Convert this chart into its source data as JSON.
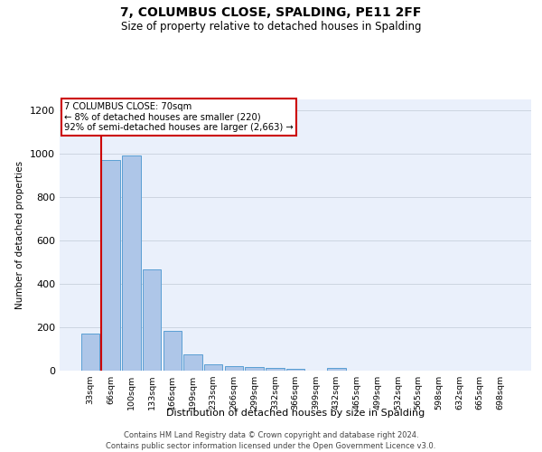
{
  "title": "7, COLUMBUS CLOSE, SPALDING, PE11 2FF",
  "subtitle": "Size of property relative to detached houses in Spalding",
  "xlabel": "Distribution of detached houses by size in Spalding",
  "ylabel": "Number of detached properties",
  "footnote1": "Contains HM Land Registry data © Crown copyright and database right 2024.",
  "footnote2": "Contains public sector information licensed under the Open Government Licence v3.0.",
  "bar_labels": [
    "33sqm",
    "66sqm",
    "100sqm",
    "133sqm",
    "166sqm",
    "199sqm",
    "233sqm",
    "266sqm",
    "299sqm",
    "332sqm",
    "366sqm",
    "399sqm",
    "432sqm",
    "465sqm",
    "499sqm",
    "532sqm",
    "565sqm",
    "598sqm",
    "632sqm",
    "665sqm",
    "698sqm"
  ],
  "bar_values": [
    170,
    970,
    990,
    465,
    185,
    75,
    28,
    22,
    18,
    12,
    10,
    0,
    12,
    0,
    0,
    0,
    0,
    0,
    0,
    0,
    0
  ],
  "bar_color": "#aec6e8",
  "bar_edgecolor": "#5a9fd4",
  "bg_color": "#eaf0fb",
  "grid_color": "#c8d0dc",
  "property_label": "7 COLUMBUS CLOSE: 70sqm",
  "annotation_line1": "← 8% of detached houses are smaller (220)",
  "annotation_line2": "92% of semi-detached houses are larger (2,663) →",
  "vline_color": "#cc0000",
  "annotation_box_edgecolor": "#cc0000",
  "ylim": [
    0,
    1250
  ],
  "yticks": [
    0,
    200,
    400,
    600,
    800,
    1000,
    1200
  ],
  "vline_bar_index": 1,
  "title_fontsize": 10,
  "subtitle_fontsize": 8.5
}
